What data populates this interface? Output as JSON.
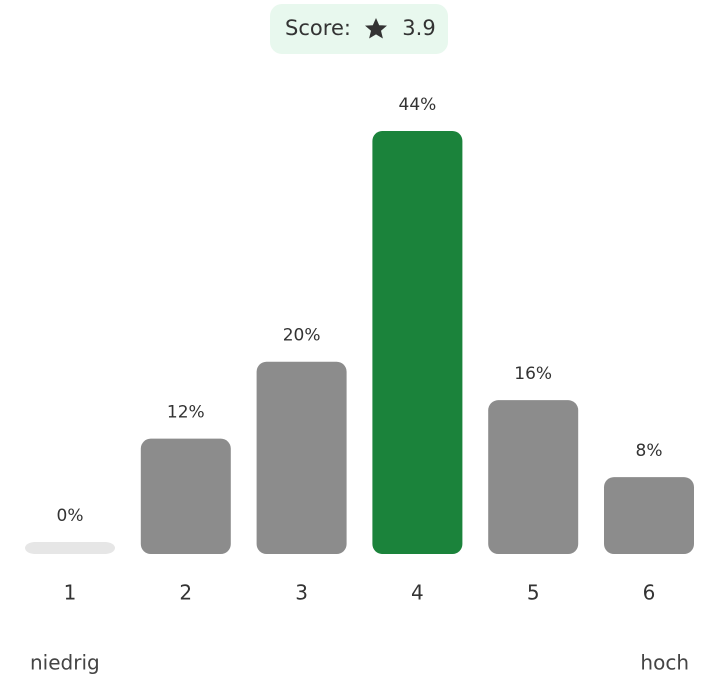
{
  "score_label": "Score:",
  "score": 3.9,
  "chart_data": {
    "type": "bar",
    "categories": [
      "1",
      "2",
      "3",
      "4",
      "5",
      "6"
    ],
    "values": [
      0,
      12,
      20,
      44,
      16,
      8
    ],
    "value_labels": [
      "0%",
      "12%",
      "20%",
      "44%",
      "16%",
      "8%"
    ],
    "colors": [
      "#e6e6e6",
      "#8c8c8c",
      "#8c8c8c",
      "#1b833b",
      "#8c8c8c",
      "#8c8c8c"
    ],
    "low_label": "niedrig",
    "high_label": "hoch"
  }
}
